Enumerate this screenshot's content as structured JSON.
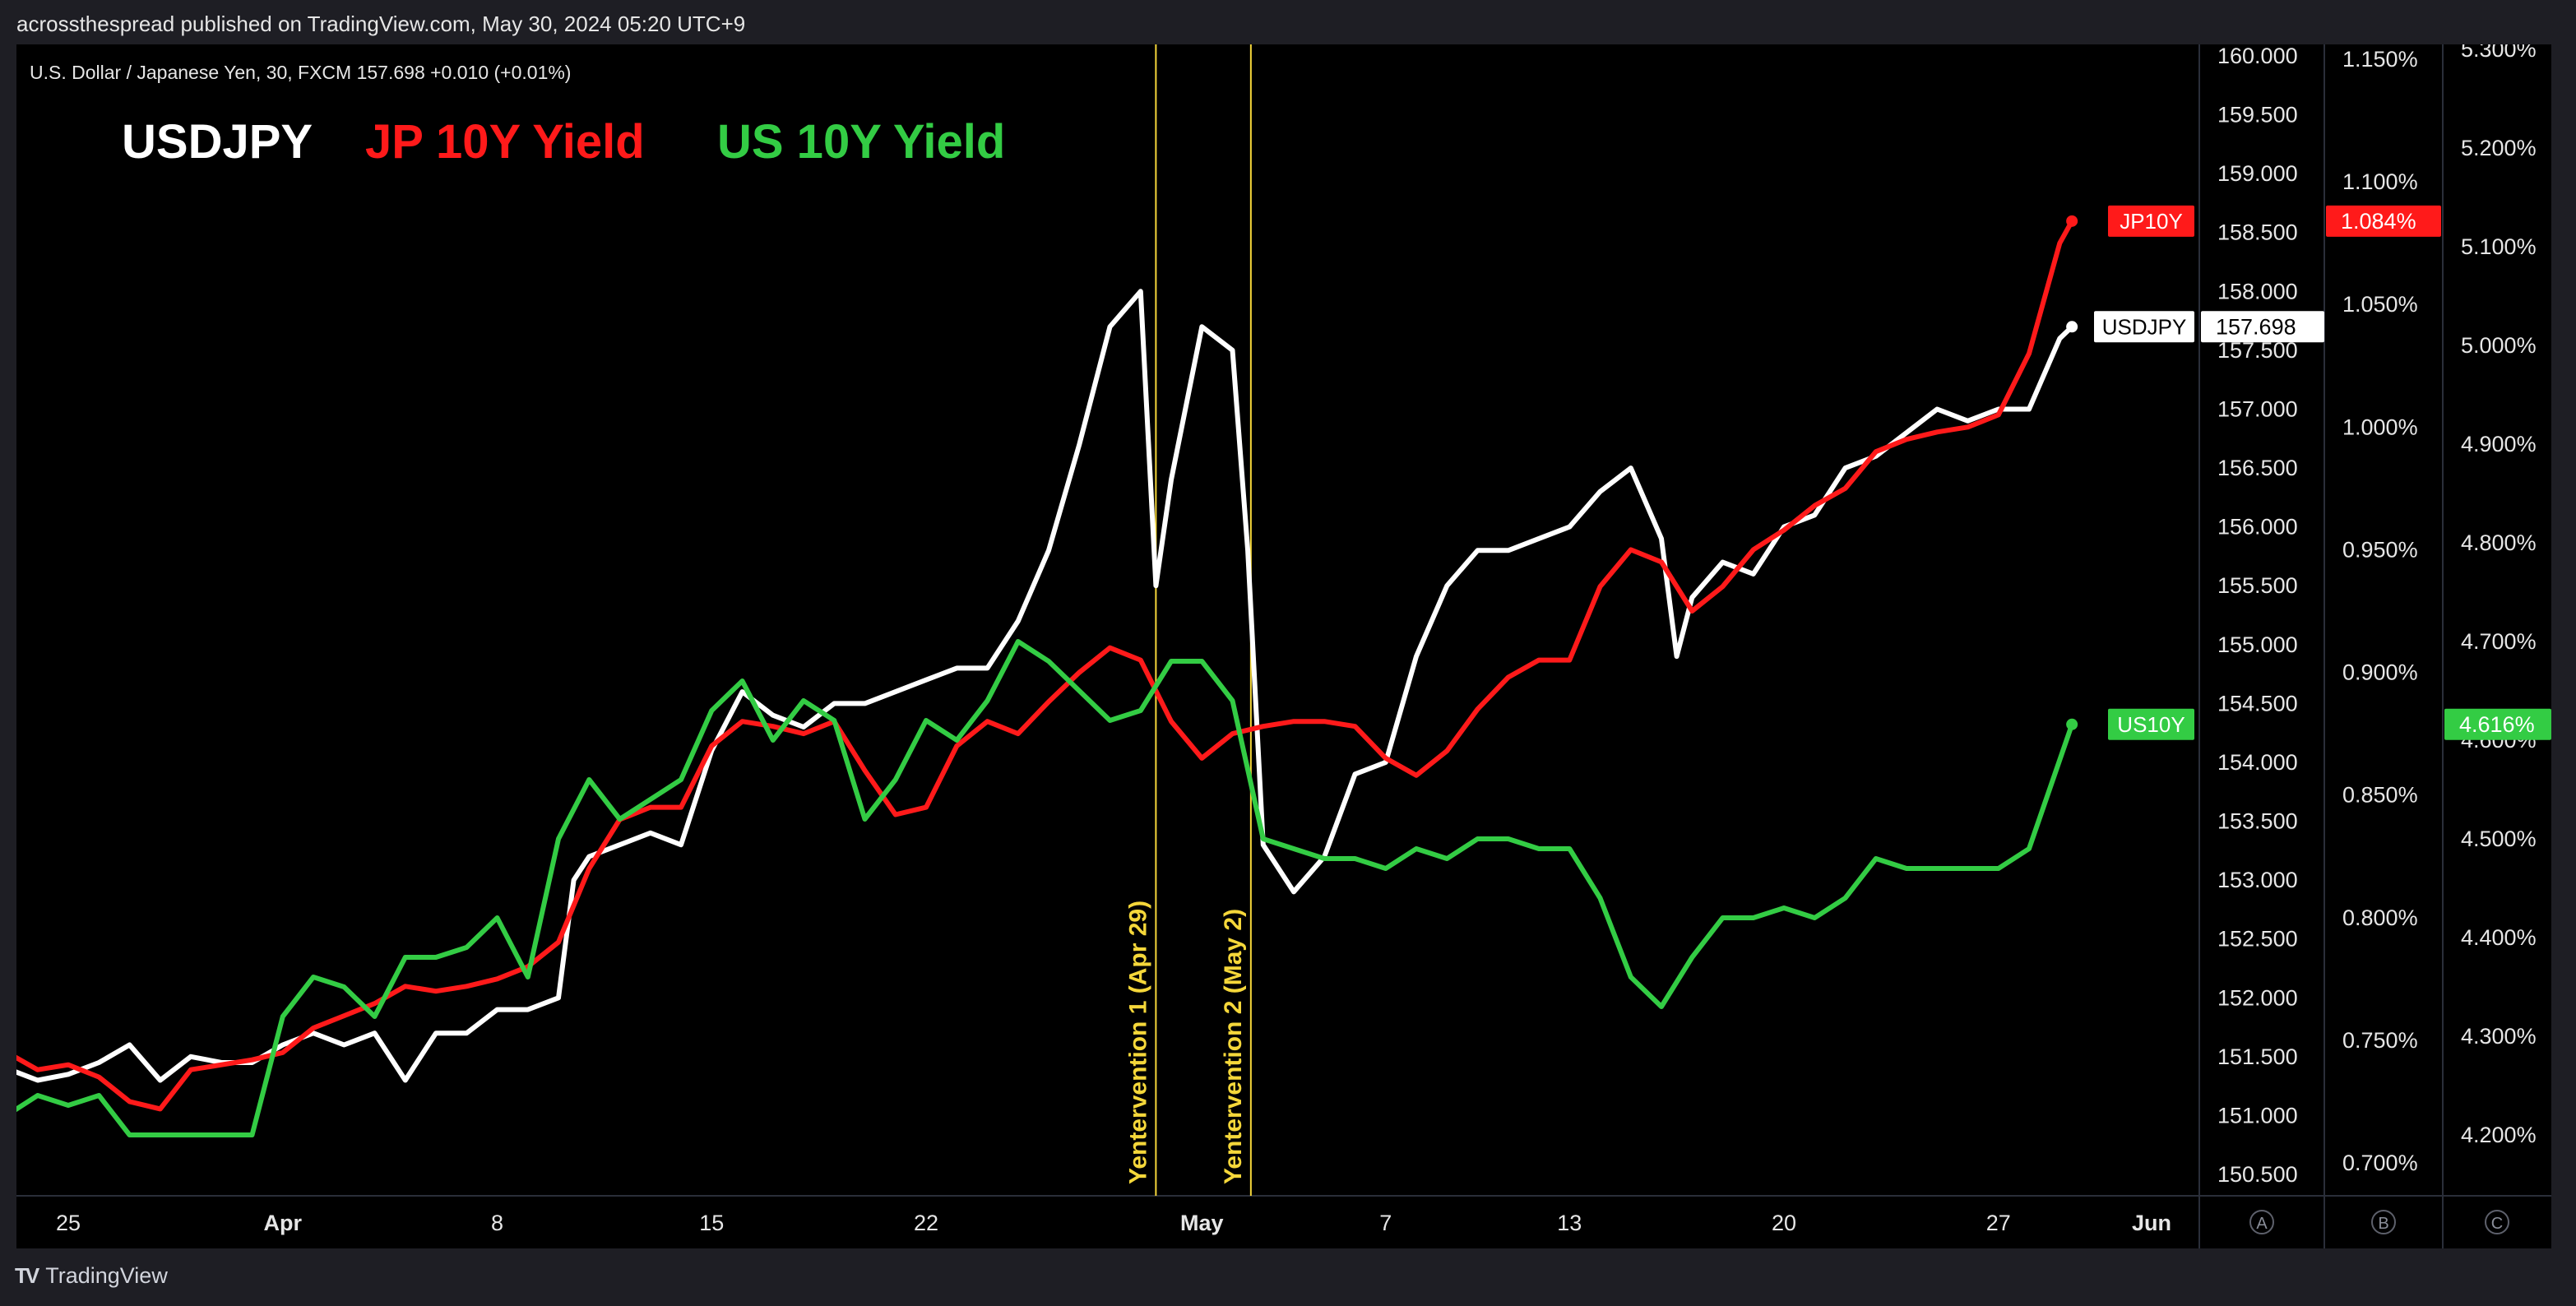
{
  "publication": "acrossthespread published on TradingView.com, May 30, 2024 05:20 UTC+9",
  "symbol_line": "U.S. Dollar / Japanese Yen, 30, FXCM  157.698  +0.010 (+0.01%)",
  "branding": "TradingView",
  "colors": {
    "usdjpy": "#ffffff",
    "jp10y": "#ff1a1a",
    "us10y": "#33cc44",
    "annotation": "#f5d73a",
    "background": "#000000"
  },
  "chart_data": {
    "type": "line",
    "legend": [
      {
        "name": "USDJPY",
        "color": "#ffffff"
      },
      {
        "name": "JP 10Y Yield",
        "color": "#ff1a1a"
      },
      {
        "name": "US 10Y Yield",
        "color": "#33cc44"
      }
    ],
    "x_ticks": [
      "25",
      "Apr",
      "8",
      "15",
      "22",
      "May",
      "7",
      "13",
      "20",
      "27",
      "Jun"
    ],
    "axes": {
      "A": {
        "ticks": [
          "160.000",
          "159.500",
          "159.000",
          "158.500",
          "158.000",
          "157.500",
          "157.000",
          "156.500",
          "156.000",
          "155.500",
          "155.000",
          "154.500",
          "154.000",
          "153.500",
          "153.000",
          "152.500",
          "152.000",
          "151.500",
          "151.000",
          "150.500"
        ],
        "range": [
          150.3,
          160.15
        ],
        "label": "A"
      },
      "B": {
        "ticks": [
          "1.150%",
          "1.100%",
          "1.050%",
          "1.000%",
          "0.950%",
          "0.900%",
          "0.850%",
          "0.800%",
          "0.750%",
          "0.700%"
        ],
        "range": [
          0.6905,
          1.1545
        ],
        "label": "B"
      },
      "C": {
        "ticks": [
          "5.300%",
          "5.200%",
          "5.100%",
          "5.000%",
          "4.900%",
          "4.800%",
          "4.700%",
          "4.600%",
          "4.500%",
          "4.400%",
          "4.300%",
          "4.200%"
        ],
        "range": [
          4.1,
          5.31
        ],
        "label": "C"
      }
    },
    "price_tags": [
      {
        "series": "JP10Y",
        "name_label": "JP10Y",
        "value_label": "1.084%"
      },
      {
        "series": "USDJPY",
        "name_label": "USDJPY",
        "value_label": "157.698"
      },
      {
        "series": "US10Y",
        "name_label": "US10Y",
        "value_label": "4.616%"
      }
    ],
    "events": [
      {
        "date": "Apr 29",
        "label": "Yentervention 1 (Apr 29)"
      },
      {
        "date": "May 2",
        "label": "Yentervention 2 (May 2)"
      }
    ],
    "series": [
      {
        "name": "USDJPY",
        "axis": "A",
        "color": "#ffffff",
        "points": [
          [
            "Mar 22",
            151.6
          ],
          [
            "Mar 23",
            151.4
          ],
          [
            "Mar 24",
            151.3
          ],
          [
            "Mar 25",
            151.35
          ],
          [
            "Mar 26",
            151.45
          ],
          [
            "Mar 27",
            151.6
          ],
          [
            "Mar 28",
            151.3
          ],
          [
            "Mar 29",
            151.5
          ],
          [
            "Mar 30",
            151.45
          ],
          [
            "Mar 31",
            151.45
          ],
          [
            "Apr 1",
            151.6
          ],
          [
            "Apr 2",
            151.7
          ],
          [
            "Apr 3",
            151.6
          ],
          [
            "Apr 4",
            151.7
          ],
          [
            "Apr 5",
            151.3
          ],
          [
            "Apr 6",
            151.7
          ],
          [
            "Apr 7",
            151.7
          ],
          [
            "Apr 8",
            151.9
          ],
          [
            "Apr 9",
            151.9
          ],
          [
            "Apr 10",
            152.0
          ],
          [
            "Apr 10.5",
            153.0
          ],
          [
            "Apr 11",
            153.2
          ],
          [
            "Apr 12",
            153.3
          ],
          [
            "Apr 13",
            153.4
          ],
          [
            "Apr 14",
            153.3
          ],
          [
            "Apr 15",
            154.1
          ],
          [
            "Apr 16",
            154.6
          ],
          [
            "Apr 17",
            154.4
          ],
          [
            "Apr 18",
            154.3
          ],
          [
            "Apr 19",
            154.5
          ],
          [
            "Apr 20",
            154.5
          ],
          [
            "Apr 21",
            154.6
          ],
          [
            "Apr 22",
            154.7
          ],
          [
            "Apr 23",
            154.8
          ],
          [
            "Apr 24",
            154.8
          ],
          [
            "Apr 25",
            155.2
          ],
          [
            "Apr 26",
            155.8
          ],
          [
            "Apr 27",
            156.7
          ],
          [
            "Apr 28",
            157.7
          ],
          [
            "Apr 29",
            158.0
          ],
          [
            "Apr 29.5",
            155.5
          ],
          [
            "Apr 30",
            156.4
          ],
          [
            "May 1",
            157.7
          ],
          [
            "May 2",
            157.5
          ],
          [
            "May 2.5",
            155.8
          ],
          [
            "May 3",
            153.3
          ],
          [
            "May 4",
            152.9
          ],
          [
            "May 5",
            153.2
          ],
          [
            "May 6",
            153.9
          ],
          [
            "May 7",
            154.0
          ],
          [
            "May 8",
            154.9
          ],
          [
            "May 9",
            155.5
          ],
          [
            "May 10",
            155.8
          ],
          [
            "May 11",
            155.8
          ],
          [
            "May 12",
            155.9
          ],
          [
            "May 13",
            156.0
          ],
          [
            "May 14",
            156.3
          ],
          [
            "May 15",
            156.5
          ],
          [
            "May 16",
            155.9
          ],
          [
            "May 16.5",
            154.9
          ],
          [
            "May 17",
            155.4
          ],
          [
            "May 18",
            155.7
          ],
          [
            "May 19",
            155.6
          ],
          [
            "May 20",
            156.0
          ],
          [
            "May 21",
            156.1
          ],
          [
            "May 22",
            156.5
          ],
          [
            "May 23",
            156.6
          ],
          [
            "May 24",
            156.8
          ],
          [
            "May 25",
            157.0
          ],
          [
            "May 26",
            156.9
          ],
          [
            "May 27",
            157.0
          ],
          [
            "May 28",
            157.0
          ],
          [
            "May 29",
            157.6
          ],
          [
            "May 29.4",
            157.7
          ]
        ]
      },
      {
        "name": "JP 10Y Yield",
        "axis": "B",
        "color": "#ff1a1a",
        "points": [
          [
            "Mar 22",
            0.75
          ],
          [
            "Mar 23",
            0.745
          ],
          [
            "Mar 24",
            0.738
          ],
          [
            "Mar 25",
            0.74
          ],
          [
            "Mar 26",
            0.735
          ],
          [
            "Mar 27",
            0.725
          ],
          [
            "Mar 28",
            0.722
          ],
          [
            "Mar 29",
            0.738
          ],
          [
            "Mar 30",
            0.74
          ],
          [
            "Mar 31",
            0.742
          ],
          [
            "Apr 1",
            0.745
          ],
          [
            "Apr 2",
            0.755
          ],
          [
            "Apr 3",
            0.76
          ],
          [
            "Apr 4",
            0.765
          ],
          [
            "Apr 5",
            0.772
          ],
          [
            "Apr 6",
            0.77
          ],
          [
            "Apr 7",
            0.772
          ],
          [
            "Apr 8",
            0.775
          ],
          [
            "Apr 9",
            0.78
          ],
          [
            "Apr 10",
            0.79
          ],
          [
            "Apr 11",
            0.82
          ],
          [
            "Apr 12",
            0.84
          ],
          [
            "Apr 13",
            0.845
          ],
          [
            "Apr 14",
            0.845
          ],
          [
            "Apr 15",
            0.87
          ],
          [
            "Apr 16",
            0.88
          ],
          [
            "Apr 17",
            0.878
          ],
          [
            "Apr 18",
            0.875
          ],
          [
            "Apr 19",
            0.88
          ],
          [
            "Apr 20",
            0.86
          ],
          [
            "Apr 21",
            0.842
          ],
          [
            "Apr 22",
            0.845
          ],
          [
            "Apr 23",
            0.87
          ],
          [
            "Apr 24",
            0.88
          ],
          [
            "Apr 25",
            0.875
          ],
          [
            "Apr 26",
            0.888
          ],
          [
            "Apr 27",
            0.9
          ],
          [
            "Apr 28",
            0.91
          ],
          [
            "Apr 29",
            0.905
          ],
          [
            "Apr 30",
            0.88
          ],
          [
            "May 1",
            0.865
          ],
          [
            "May 2",
            0.875
          ],
          [
            "May 3",
            0.878
          ],
          [
            "May 4",
            0.88
          ],
          [
            "May 5",
            0.88
          ],
          [
            "May 6",
            0.878
          ],
          [
            "May 7",
            0.865
          ],
          [
            "May 8",
            0.858
          ],
          [
            "May 9",
            0.868
          ],
          [
            "May 10",
            0.885
          ],
          [
            "May 11",
            0.898
          ],
          [
            "May 12",
            0.905
          ],
          [
            "May 13",
            0.905
          ],
          [
            "May 14",
            0.935
          ],
          [
            "May 15",
            0.95
          ],
          [
            "May 16",
            0.945
          ],
          [
            "May 17",
            0.925
          ],
          [
            "May 18",
            0.935
          ],
          [
            "May 19",
            0.95
          ],
          [
            "May 20",
            0.958
          ],
          [
            "May 21",
            0.968
          ],
          [
            "May 22",
            0.975
          ],
          [
            "May 23",
            0.99
          ],
          [
            "May 24",
            0.995
          ],
          [
            "May 25",
            0.998
          ],
          [
            "May 26",
            1.0
          ],
          [
            "May 27",
            1.005
          ],
          [
            "May 28",
            1.03
          ],
          [
            "May 29",
            1.075
          ],
          [
            "May 29.4",
            1.084
          ]
        ]
      },
      {
        "name": "US 10Y Yield",
        "axis": "C",
        "color": "#33cc44",
        "points": [
          [
            "Mar 22",
            4.24
          ],
          [
            "Mar 23",
            4.22
          ],
          [
            "Mar 24",
            4.24
          ],
          [
            "Mar 25",
            4.23
          ],
          [
            "Mar 26",
            4.24
          ],
          [
            "Mar 27",
            4.2
          ],
          [
            "Mar 28",
            4.2
          ],
          [
            "Mar 29",
            4.2
          ],
          [
            "Mar 30",
            4.2
          ],
          [
            "Mar 31",
            4.2
          ],
          [
            "Apr 1",
            4.32
          ],
          [
            "Apr 2",
            4.36
          ],
          [
            "Apr 3",
            4.35
          ],
          [
            "Apr 4",
            4.32
          ],
          [
            "Apr 5",
            4.38
          ],
          [
            "Apr 6",
            4.38
          ],
          [
            "Apr 7",
            4.39
          ],
          [
            "Apr 8",
            4.42
          ],
          [
            "Apr 9",
            4.36
          ],
          [
            "Apr 10",
            4.5
          ],
          [
            "Apr 11",
            4.56
          ],
          [
            "Apr 12",
            4.52
          ],
          [
            "Apr 13",
            4.54
          ],
          [
            "Apr 14",
            4.56
          ],
          [
            "Apr 15",
            4.63
          ],
          [
            "Apr 16",
            4.66
          ],
          [
            "Apr 17",
            4.6
          ],
          [
            "Apr 18",
            4.64
          ],
          [
            "Apr 19",
            4.62
          ],
          [
            "Apr 20",
            4.52
          ],
          [
            "Apr 21",
            4.56
          ],
          [
            "Apr 22",
            4.62
          ],
          [
            "Apr 23",
            4.6
          ],
          [
            "Apr 24",
            4.64
          ],
          [
            "Apr 25",
            4.7
          ],
          [
            "Apr 26",
            4.68
          ],
          [
            "Apr 27",
            4.65
          ],
          [
            "Apr 28",
            4.62
          ],
          [
            "Apr 29",
            4.63
          ],
          [
            "Apr 30",
            4.68
          ],
          [
            "May 1",
            4.68
          ],
          [
            "May 2",
            4.64
          ],
          [
            "May 3",
            4.5
          ],
          [
            "May 4",
            4.49
          ],
          [
            "May 5",
            4.48
          ],
          [
            "May 6",
            4.48
          ],
          [
            "May 7",
            4.47
          ],
          [
            "May 8",
            4.49
          ],
          [
            "May 9",
            4.48
          ],
          [
            "May 10",
            4.5
          ],
          [
            "May 11",
            4.5
          ],
          [
            "May 12",
            4.49
          ],
          [
            "May 13",
            4.49
          ],
          [
            "May 14",
            4.44
          ],
          [
            "May 15",
            4.36
          ],
          [
            "May 16",
            4.33
          ],
          [
            "May 17",
            4.38
          ],
          [
            "May 18",
            4.42
          ],
          [
            "May 19",
            4.42
          ],
          [
            "May 20",
            4.43
          ],
          [
            "May 21",
            4.42
          ],
          [
            "May 22",
            4.44
          ],
          [
            "May 23",
            4.48
          ],
          [
            "May 24",
            4.47
          ],
          [
            "May 25",
            4.47
          ],
          [
            "May 26",
            4.47
          ],
          [
            "May 27",
            4.47
          ],
          [
            "May 28",
            4.49
          ],
          [
            "May 29",
            4.58
          ],
          [
            "May 29.4",
            4.616
          ]
        ]
      }
    ]
  }
}
